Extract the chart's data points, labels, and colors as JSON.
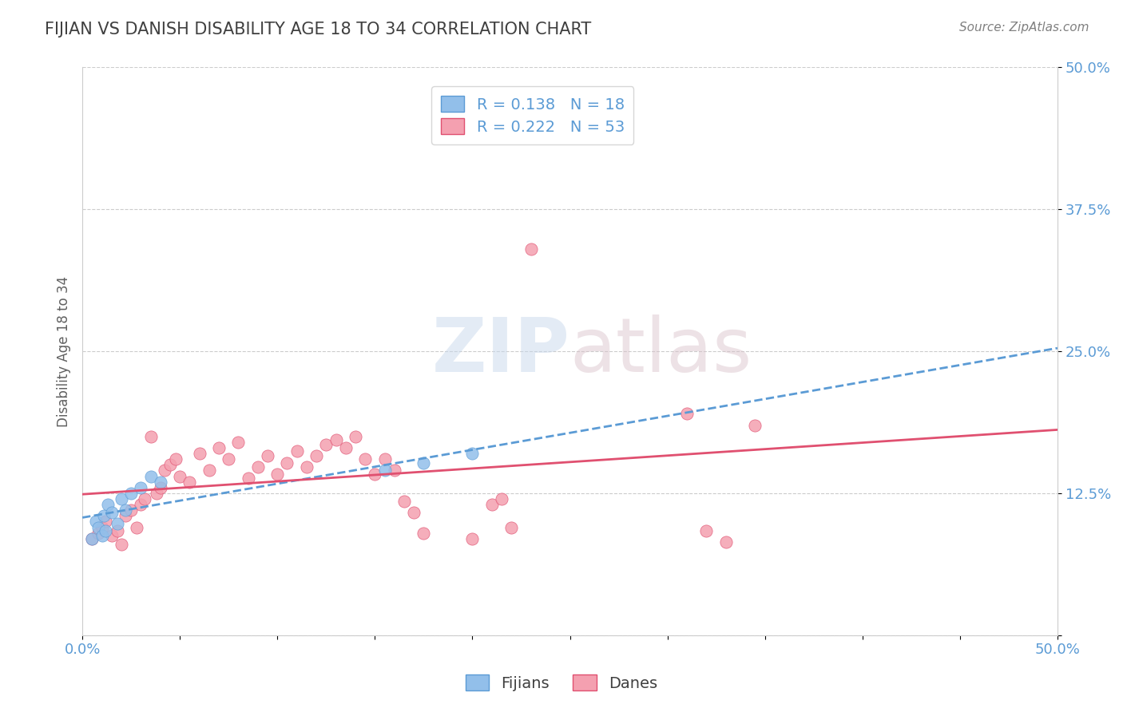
{
  "title": "FIJIAN VS DANISH DISABILITY AGE 18 TO 34 CORRELATION CHART",
  "source_text": "Source: ZipAtlas.com",
  "xlabel": "",
  "ylabel": "Disability Age 18 to 34",
  "xlim": [
    0.0,
    0.5
  ],
  "ylim": [
    0.0,
    0.5
  ],
  "xticks": [
    0.0,
    0.05,
    0.1,
    0.15,
    0.2,
    0.25,
    0.3,
    0.35,
    0.4,
    0.45,
    0.5
  ],
  "yticks": [
    0.0,
    0.125,
    0.25,
    0.375,
    0.5
  ],
  "ytick_labels": [
    "",
    "12.5%",
    "25.0%",
    "37.5%",
    "50.0%"
  ],
  "xtick_labels": [
    "0.0%",
    "",
    "",
    "",
    "",
    "",
    "",
    "",
    "",
    "",
    "50.0%"
  ],
  "fijian_R": 0.138,
  "fijian_N": 18,
  "danish_R": 0.222,
  "danish_N": 53,
  "fijian_color": "#92BFEA",
  "danish_color": "#F4A0B0",
  "fijian_line_color": "#5B9BD5",
  "danish_line_color": "#E05070",
  "grid_color": "#CCCCCC",
  "title_color": "#404040",
  "axis_label_color": "#5B9BD5",
  "watermark_text": "ZIPatlas",
  "watermark_color_ZIP": "#C8D8EC",
  "watermark_color_atlas": "#D8C8D0",
  "fijian_x": [
    0.005,
    0.007,
    0.008,
    0.01,
    0.011,
    0.012,
    0.013,
    0.015,
    0.018,
    0.02,
    0.022,
    0.025,
    0.03,
    0.035,
    0.04,
    0.155,
    0.175,
    0.2
  ],
  "fijian_y": [
    0.085,
    0.1,
    0.095,
    0.088,
    0.105,
    0.092,
    0.115,
    0.108,
    0.098,
    0.12,
    0.11,
    0.125,
    0.13,
    0.14,
    0.135,
    0.145,
    0.152,
    0.16
  ],
  "danish_x": [
    0.005,
    0.008,
    0.01,
    0.012,
    0.015,
    0.018,
    0.02,
    0.022,
    0.025,
    0.028,
    0.03,
    0.032,
    0.035,
    0.038,
    0.04,
    0.042,
    0.045,
    0.048,
    0.05,
    0.055,
    0.06,
    0.065,
    0.07,
    0.075,
    0.08,
    0.085,
    0.09,
    0.095,
    0.1,
    0.105,
    0.11,
    0.115,
    0.12,
    0.125,
    0.13,
    0.135,
    0.14,
    0.145,
    0.15,
    0.155,
    0.16,
    0.165,
    0.17,
    0.175,
    0.2,
    0.21,
    0.215,
    0.22,
    0.23,
    0.31,
    0.32,
    0.33,
    0.345
  ],
  "danish_y": [
    0.085,
    0.09,
    0.095,
    0.1,
    0.088,
    0.092,
    0.08,
    0.105,
    0.11,
    0.095,
    0.115,
    0.12,
    0.175,
    0.125,
    0.13,
    0.145,
    0.15,
    0.155,
    0.14,
    0.135,
    0.16,
    0.145,
    0.165,
    0.155,
    0.17,
    0.138,
    0.148,
    0.158,
    0.142,
    0.152,
    0.162,
    0.148,
    0.158,
    0.168,
    0.172,
    0.165,
    0.175,
    0.155,
    0.142,
    0.155,
    0.145,
    0.118,
    0.108,
    0.09,
    0.085,
    0.115,
    0.12,
    0.095,
    0.34,
    0.195,
    0.092,
    0.082,
    0.185
  ],
  "background_color": "#FFFFFF",
  "legend_facecolor": "#FFFFFF",
  "legend_edgecolor": "#CCCCCC"
}
